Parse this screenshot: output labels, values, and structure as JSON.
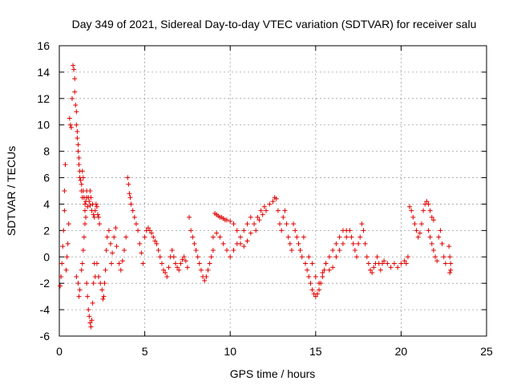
{
  "chart_data": {
    "type": "scatter",
    "title": "Day 349 of 2021, Sidereal Day-to-day VTEC variation (SDTVAR) for receiver salu",
    "xlabel": "GPS time / hours",
    "ylabel": "SDTVAR / TECUs",
    "xlim": [
      0,
      25
    ],
    "ylim": [
      -6,
      16
    ],
    "xticks": [
      0,
      5,
      10,
      15,
      20,
      25
    ],
    "yticks": [
      -6,
      -4,
      -2,
      0,
      2,
      4,
      6,
      8,
      10,
      12,
      14,
      16
    ],
    "grid": true,
    "marker": "plus",
    "color": "#e00000",
    "series": [
      {
        "name": "SDTVAR",
        "points": [
          [
            0.05,
            -2.2
          ],
          [
            0.1,
            -1.5
          ],
          [
            0.15,
            -0.5
          ],
          [
            0.2,
            0.8
          ],
          [
            0.25,
            2.0
          ],
          [
            0.3,
            3.5
          ],
          [
            0.3,
            5.0
          ],
          [
            0.35,
            7.0
          ],
          [
            0.4,
            -1.0
          ],
          [
            0.45,
            0.0
          ],
          [
            0.5,
            1.0
          ],
          [
            0.55,
            2.5
          ],
          [
            0.6,
            10.5
          ],
          [
            0.65,
            10.0
          ],
          [
            0.7,
            9.8
          ],
          [
            0.75,
            12.0
          ],
          [
            0.8,
            14.5
          ],
          [
            0.85,
            14.2
          ],
          [
            0.9,
            13.5
          ],
          [
            0.9,
            12.5
          ],
          [
            0.95,
            11.5
          ],
          [
            1.0,
            11.0
          ],
          [
            1.0,
            10.0
          ],
          [
            1.05,
            9.5
          ],
          [
            1.05,
            9.0
          ],
          [
            1.1,
            8.5
          ],
          [
            1.1,
            8.0
          ],
          [
            1.15,
            7.5
          ],
          [
            1.15,
            7.0
          ],
          [
            1.2,
            6.5
          ],
          [
            1.2,
            6.0
          ],
          [
            1.25,
            5.8
          ],
          [
            1.3,
            5.5
          ],
          [
            1.3,
            5.0
          ],
          [
            1.35,
            4.5
          ],
          [
            1.35,
            6.5
          ],
          [
            1.4,
            6.0
          ],
          [
            1.4,
            5.0
          ],
          [
            1.45,
            4.5
          ],
          [
            1.5,
            4.0
          ],
          [
            1.5,
            3.5
          ],
          [
            1.55,
            4.2
          ],
          [
            1.6,
            5.0
          ],
          [
            1.6,
            4.5
          ],
          [
            1.65,
            3.8
          ],
          [
            1.7,
            4.5
          ],
          [
            1.75,
            4.2
          ],
          [
            1.8,
            3.9
          ],
          [
            1.8,
            5.0
          ],
          [
            1.85,
            4.5
          ],
          [
            1.9,
            3.5
          ],
          [
            1.95,
            4.0
          ],
          [
            2.0,
            3.2
          ],
          [
            2.05,
            3.0
          ],
          [
            2.1,
            3.5
          ],
          [
            2.15,
            4.0
          ],
          [
            2.2,
            3.8
          ],
          [
            2.25,
            3.2
          ],
          [
            2.3,
            3.0
          ],
          [
            2.35,
            2.5
          ],
          [
            1.0,
            -1.5
          ],
          [
            1.1,
            -2.0
          ],
          [
            1.15,
            -3.0
          ],
          [
            1.2,
            -2.5
          ],
          [
            1.3,
            -1.0
          ],
          [
            1.35,
            -0.5
          ],
          [
            1.4,
            0.5
          ],
          [
            1.45,
            1.5
          ],
          [
            1.5,
            2.5
          ],
          [
            1.55,
            3.0
          ],
          [
            1.6,
            -2.0
          ],
          [
            1.65,
            -3.0
          ],
          [
            1.7,
            -4.0
          ],
          [
            1.75,
            -4.5
          ],
          [
            1.8,
            -5.0
          ],
          [
            1.85,
            -5.3
          ],
          [
            1.9,
            -4.8
          ],
          [
            1.95,
            -3.5
          ],
          [
            2.0,
            -2.0
          ],
          [
            2.05,
            -0.5
          ],
          [
            2.1,
            -1.5
          ],
          [
            2.2,
            -0.5
          ],
          [
            2.3,
            -1.5
          ],
          [
            2.4,
            -2.0
          ],
          [
            2.5,
            -2.5
          ],
          [
            2.55,
            -3.2
          ],
          [
            2.6,
            -3.0
          ],
          [
            2.65,
            -2.0
          ],
          [
            2.7,
            -1.0
          ],
          [
            2.75,
            0.5
          ],
          [
            2.8,
            1.5
          ],
          [
            2.9,
            2.0
          ],
          [
            3.0,
            1.0
          ],
          [
            3.05,
            -0.5
          ],
          [
            3.1,
            0.3
          ],
          [
            3.2,
            1.5
          ],
          [
            3.3,
            2.2
          ],
          [
            3.35,
            0.8
          ],
          [
            3.5,
            -0.5
          ],
          [
            3.6,
            -1.0
          ],
          [
            3.7,
            -0.3
          ],
          [
            3.8,
            0.5
          ],
          [
            3.9,
            1.5
          ],
          [
            4.0,
            6.0
          ],
          [
            4.05,
            5.5
          ],
          [
            4.1,
            4.8
          ],
          [
            4.15,
            4.5
          ],
          [
            4.2,
            4.0
          ],
          [
            4.3,
            3.5
          ],
          [
            4.4,
            3.0
          ],
          [
            4.5,
            2.5
          ],
          [
            4.6,
            2.0
          ],
          [
            4.7,
            1.0
          ],
          [
            4.8,
            0.3
          ],
          [
            4.9,
            -0.5
          ],
          [
            5.0,
            1.5
          ],
          [
            5.1,
            2.0
          ],
          [
            5.2,
            2.2
          ],
          [
            5.3,
            2.0
          ],
          [
            5.4,
            1.8
          ],
          [
            5.5,
            1.5
          ],
          [
            5.6,
            1.2
          ],
          [
            5.7,
            1.0
          ],
          [
            5.8,
            0.5
          ],
          [
            5.9,
            0.0
          ],
          [
            6.0,
            -0.5
          ],
          [
            6.1,
            -1.0
          ],
          [
            6.2,
            -1.2
          ],
          [
            6.3,
            -1.5
          ],
          [
            6.4,
            -0.8
          ],
          [
            6.5,
            0.0
          ],
          [
            6.6,
            0.5
          ],
          [
            6.7,
            0.0
          ],
          [
            6.8,
            -0.5
          ],
          [
            6.9,
            -0.8
          ],
          [
            7.0,
            -1.0
          ],
          [
            7.1,
            -0.5
          ],
          [
            7.2,
            -0.2
          ],
          [
            7.3,
            0.0
          ],
          [
            7.4,
            -0.3
          ],
          [
            7.5,
            -0.8
          ],
          [
            7.6,
            3.0
          ],
          [
            7.7,
            2.0
          ],
          [
            7.8,
            1.5
          ],
          [
            7.9,
            1.0
          ],
          [
            8.0,
            0.5
          ],
          [
            8.1,
            0.0
          ],
          [
            8.2,
            -0.5
          ],
          [
            8.3,
            -1.0
          ],
          [
            8.4,
            -1.5
          ],
          [
            8.5,
            -1.8
          ],
          [
            8.6,
            -1.5
          ],
          [
            8.7,
            -1.0
          ],
          [
            8.8,
            -0.5
          ],
          [
            8.9,
            0.0
          ],
          [
            9.0,
            0.5
          ],
          [
            9.1,
            3.3
          ],
          [
            9.2,
            3.2
          ],
          [
            9.3,
            3.1
          ],
          [
            9.4,
            3.0
          ],
          [
            9.5,
            3.0
          ],
          [
            9.6,
            2.9
          ],
          [
            9.7,
            2.8
          ],
          [
            9.0,
            1.5
          ],
          [
            9.2,
            1.8
          ],
          [
            9.4,
            1.5
          ],
          [
            9.6,
            1.0
          ],
          [
            9.8,
            0.5
          ],
          [
            10.0,
            0.0
          ],
          [
            10.2,
            0.5
          ],
          [
            10.4,
            1.0
          ],
          [
            10.6,
            1.5
          ],
          [
            10.8,
            2.0
          ],
          [
            11.0,
            2.5
          ],
          [
            11.2,
            3.0
          ],
          [
            9.8,
            2.8
          ],
          [
            10.0,
            2.7
          ],
          [
            10.2,
            2.5
          ],
          [
            10.4,
            2.0
          ],
          [
            10.6,
            1.0
          ],
          [
            10.8,
            0.8
          ],
          [
            11.0,
            1.2
          ],
          [
            11.2,
            1.8
          ],
          [
            11.4,
            2.5
          ],
          [
            11.6,
            3.0
          ],
          [
            11.8,
            3.5
          ],
          [
            12.0,
            3.8
          ],
          [
            11.5,
            2.0
          ],
          [
            11.7,
            2.8
          ],
          [
            11.9,
            3.2
          ],
          [
            12.1,
            3.5
          ],
          [
            12.3,
            4.0
          ],
          [
            12.5,
            4.2
          ],
          [
            12.6,
            4.5
          ],
          [
            12.7,
            4.4
          ],
          [
            12.8,
            3.5
          ],
          [
            12.9,
            2.5
          ],
          [
            13.0,
            2.0
          ],
          [
            13.1,
            3.0
          ],
          [
            13.2,
            3.5
          ],
          [
            13.3,
            2.5
          ],
          [
            13.4,
            1.5
          ],
          [
            13.5,
            1.0
          ],
          [
            13.6,
            0.5
          ],
          [
            13.7,
            2.5
          ],
          [
            13.8,
            2.0
          ],
          [
            13.9,
            1.5
          ],
          [
            14.0,
            1.0
          ],
          [
            14.1,
            0.5
          ],
          [
            14.2,
            0.0
          ],
          [
            14.3,
            1.5
          ],
          [
            14.4,
            -0.5
          ],
          [
            14.5,
            -1.0
          ],
          [
            14.6,
            -1.5
          ],
          [
            14.7,
            -2.0
          ],
          [
            14.8,
            -2.5
          ],
          [
            14.9,
            -2.8
          ],
          [
            15.0,
            -3.0
          ],
          [
            15.1,
            -2.8
          ],
          [
            15.2,
            -2.5
          ],
          [
            15.3,
            -2.0
          ],
          [
            15.4,
            -1.5
          ],
          [
            15.5,
            -1.0
          ],
          [
            14.6,
            0.0
          ],
          [
            14.8,
            -0.5
          ],
          [
            15.0,
            -1.5
          ],
          [
            15.2,
            -2.0
          ],
          [
            15.4,
            -1.2
          ],
          [
            15.6,
            -0.5
          ],
          [
            15.8,
            0.0
          ],
          [
            16.0,
            0.5
          ],
          [
            16.2,
            1.0
          ],
          [
            16.4,
            1.5
          ],
          [
            16.6,
            2.0
          ],
          [
            16.8,
            2.0
          ],
          [
            15.6,
            -0.5
          ],
          [
            15.8,
            -1.0
          ],
          [
            16.0,
            -0.8
          ],
          [
            16.2,
            0.0
          ],
          [
            16.4,
            0.5
          ],
          [
            16.6,
            1.0
          ],
          [
            16.8,
            1.5
          ],
          [
            17.0,
            2.0
          ],
          [
            17.1,
            1.5
          ],
          [
            17.2,
            1.0
          ],
          [
            17.3,
            0.5
          ],
          [
            17.4,
            0.0
          ],
          [
            17.5,
            1.0
          ],
          [
            17.6,
            1.5
          ],
          [
            17.7,
            2.5
          ],
          [
            17.8,
            2.0
          ],
          [
            17.9,
            1.0
          ],
          [
            18.0,
            0.0
          ],
          [
            18.1,
            -0.5
          ],
          [
            18.2,
            -1.0
          ],
          [
            18.3,
            -1.2
          ],
          [
            18.4,
            -0.8
          ],
          [
            18.5,
            -0.5
          ],
          [
            18.6,
            0.0
          ],
          [
            18.7,
            -0.5
          ],
          [
            18.8,
            -1.0
          ],
          [
            18.9,
            -0.5
          ],
          [
            19.0,
            -0.3
          ],
          [
            19.2,
            -0.5
          ],
          [
            19.4,
            -0.8
          ],
          [
            19.6,
            -0.5
          ],
          [
            19.8,
            -0.8
          ],
          [
            20.0,
            -0.5
          ],
          [
            20.2,
            -0.3
          ],
          [
            20.3,
            -0.5
          ],
          [
            20.4,
            0.0
          ],
          [
            20.5,
            3.8
          ],
          [
            20.6,
            3.5
          ],
          [
            20.7,
            3.0
          ],
          [
            20.8,
            2.5
          ],
          [
            20.9,
            2.0
          ],
          [
            21.0,
            1.5
          ],
          [
            21.1,
            1.8
          ],
          [
            21.2,
            2.5
          ],
          [
            21.3,
            3.5
          ],
          [
            21.4,
            4.0
          ],
          [
            21.5,
            4.2
          ],
          [
            21.6,
            4.0
          ],
          [
            21.7,
            3.5
          ],
          [
            21.8,
            3.0
          ],
          [
            21.9,
            2.8
          ],
          [
            21.6,
            2.0
          ],
          [
            21.7,
            1.5
          ],
          [
            21.8,
            1.0
          ],
          [
            21.9,
            0.5
          ],
          [
            22.0,
            0.0
          ],
          [
            22.1,
            -0.3
          ],
          [
            22.2,
            1.5
          ],
          [
            22.3,
            2.0
          ],
          [
            22.4,
            1.0
          ],
          [
            22.5,
            0.0
          ],
          [
            22.6,
            -0.5
          ],
          [
            22.8,
            0.8
          ],
          [
            22.85,
            0.0
          ],
          [
            22.9,
            -0.5
          ],
          [
            22.9,
            -1.0
          ],
          [
            22.85,
            -1.2
          ]
        ]
      }
    ]
  }
}
